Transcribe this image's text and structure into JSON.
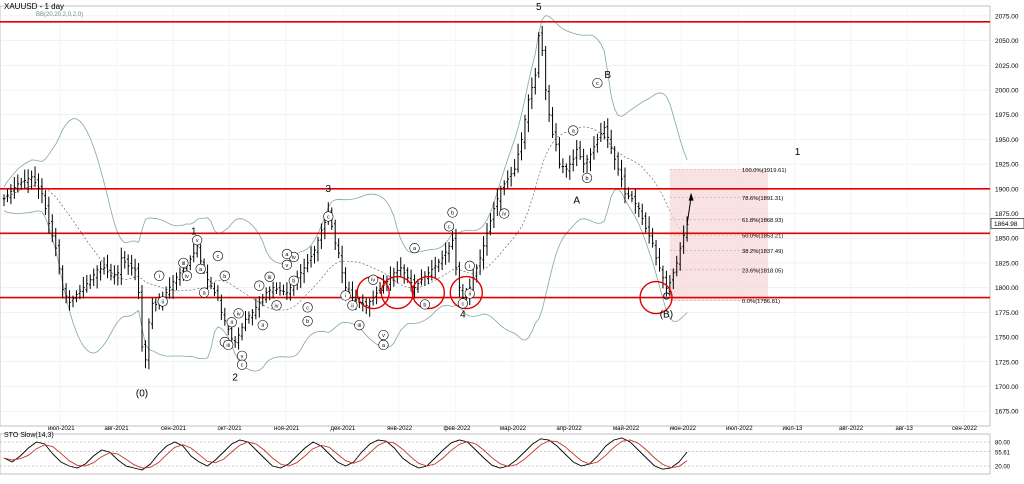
{
  "header": {
    "symbol_title": "XAUUSD - 1 day",
    "indicator_params": "BB(20,20,2,0,2,0)"
  },
  "sto_title": "STO Slow(14,3)",
  "chart_data": [
    {
      "type": "candlestick",
      "title": "XAUUSD - 1 day",
      "ylim": [
        1660,
        2085
      ],
      "y_ticks": [
        "2075.00",
        "2050.00",
        "2025.00",
        "2000.00",
        "1975.00",
        "1950.00",
        "1925.00",
        "1900.00",
        "1875.00",
        "1850.00",
        "1825.00",
        "1800.00",
        "1775.00",
        "1750.00",
        "1725.00",
        "1700.00",
        "1675.00"
      ],
      "x_ticks": [
        "июл-2021",
        "авг-2021",
        "сен-2021",
        "окт-2021",
        "ноя-2021",
        "дек-2021",
        "янв-2022",
        "фев-2022",
        "мар-2022",
        "апр-2022",
        "май-2022",
        "июн-2022",
        "июл-2022",
        "июл-13",
        "авг-2022",
        "авг-13",
        "сен-2022"
      ],
      "current_price": "1864.98",
      "horizontal_levels": [
        2069,
        1900,
        1855,
        1790
      ],
      "fib_levels": [
        {
          "label": "100.0%(1919.61)",
          "value": 1919.61
        },
        {
          "label": "78.6%(1891.31)",
          "value": 1891.31
        },
        {
          "label": "61.8%(1868.93)",
          "value": 1868.93
        },
        {
          "label": "50.0%(1853.21)",
          "value": 1853.21
        },
        {
          "label": "38.2%(1837.49)",
          "value": 1837.49
        },
        {
          "label": "23.6%(1818.05)",
          "value": 1818.05
        },
        {
          "label": "0.0%(1786.81)",
          "value": 1786.81
        }
      ],
      "price_path": [
        [
          0,
          1890
        ],
        [
          4,
          1905
        ],
        [
          8,
          1912
        ],
        [
          11,
          1895
        ],
        [
          13,
          1865
        ],
        [
          15,
          1840
        ],
        [
          17,
          1798
        ],
        [
          19,
          1785
        ],
        [
          21,
          1793
        ],
        [
          23,
          1800
        ],
        [
          25,
          1808
        ],
        [
          27,
          1818
        ],
        [
          29,
          1820
        ],
        [
          31,
          1812
        ],
        [
          33,
          1815
        ],
        [
          34,
          1830
        ],
        [
          36,
          1822
        ],
        [
          38,
          1818
        ],
        [
          39,
          1795
        ],
        [
          40,
          1740
        ],
        [
          41,
          1727
        ],
        [
          42,
          1765
        ],
        [
          43,
          1784
        ],
        [
          45,
          1782
        ],
        [
          47,
          1795
        ],
        [
          49,
          1806
        ],
        [
          51,
          1815
        ],
        [
          53,
          1823
        ],
        [
          55,
          1835
        ],
        [
          56,
          1842
        ],
        [
          57,
          1827
        ],
        [
          59,
          1808
        ],
        [
          61,
          1795
        ],
        [
          62,
          1790
        ],
        [
          63,
          1775
        ],
        [
          65,
          1758
        ],
        [
          66,
          1748
        ],
        [
          67,
          1745
        ],
        [
          68,
          1752
        ],
        [
          70,
          1768
        ],
        [
          72,
          1775
        ],
        [
          74,
          1785
        ],
        [
          76,
          1795
        ],
        [
          78,
          1800
        ],
        [
          80,
          1797
        ],
        [
          82,
          1795
        ],
        [
          84,
          1805
        ],
        [
          86,
          1815
        ],
        [
          88,
          1825
        ],
        [
          90,
          1838
        ],
        [
          92,
          1858
        ],
        [
          93,
          1866
        ],
        [
          94,
          1876
        ],
        [
          95,
          1862
        ],
        [
          96,
          1845
        ],
        [
          97,
          1835
        ],
        [
          98,
          1815
        ],
        [
          99,
          1800
        ],
        [
          101,
          1790
        ],
        [
          103,
          1785
        ],
        [
          105,
          1782
        ],
        [
          107,
          1790
        ],
        [
          109,
          1799
        ],
        [
          111,
          1806
        ],
        [
          113,
          1815
        ],
        [
          115,
          1820
        ],
        [
          117,
          1810
        ],
        [
          119,
          1800
        ],
        [
          121,
          1808
        ],
        [
          123,
          1815
        ],
        [
          125,
          1822
        ],
        [
          127,
          1830
        ],
        [
          129,
          1842
        ],
        [
          130,
          1848
        ],
        [
          131,
          1820
        ],
        [
          132,
          1800
        ],
        [
          133,
          1790
        ],
        [
          134,
          1790
        ],
        [
          135,
          1800
        ],
        [
          136,
          1810
        ],
        [
          138,
          1830
        ],
        [
          140,
          1855
        ],
        [
          142,
          1880
        ],
        [
          144,
          1900
        ],
        [
          146,
          1910
        ],
        [
          148,
          1920
        ],
        [
          150,
          1950
        ],
        [
          152,
          1990
        ],
        [
          154,
          2015
        ],
        [
          155,
          2055
        ],
        [
          156,
          2040
        ],
        [
          157,
          2000
        ],
        [
          158,
          1975
        ],
        [
          159,
          1955
        ],
        [
          160,
          1945
        ],
        [
          161,
          1925
        ],
        [
          163,
          1920
        ],
        [
          165,
          1930
        ],
        [
          166,
          1940
        ],
        [
          168,
          1925
        ],
        [
          170,
          1935
        ],
        [
          172,
          1950
        ],
        [
          174,
          1962
        ],
        [
          175,
          1952
        ],
        [
          177,
          1930
        ],
        [
          179,
          1910
        ],
        [
          180,
          1895
        ],
        [
          182,
          1890
        ],
        [
          184,
          1880
        ],
        [
          186,
          1860
        ],
        [
          188,
          1845
        ],
        [
          189,
          1830
        ],
        [
          191,
          1810
        ],
        [
          192,
          1799
        ],
        [
          193,
          1805
        ],
        [
          194,
          1815
        ],
        [
          195,
          1825
        ],
        [
          196,
          1840
        ],
        [
          197,
          1853
        ],
        [
          198,
          1864
        ]
      ],
      "wave_labels": [
        {
          "text": "(0)",
          "x": 40,
          "y": 1690,
          "style": "plain"
        },
        {
          "text": "1",
          "x": 55,
          "y": 1854,
          "style": "plain"
        },
        {
          "text": "2",
          "x": 67,
          "y": 1706,
          "style": "plain"
        },
        {
          "text": "3",
          "x": 94,
          "y": 1897,
          "style": "plain"
        },
        {
          "text": "4",
          "x": 133,
          "y": 1770,
          "style": "plain"
        },
        {
          "text": "5",
          "x": 155,
          "y": 2081,
          "style": "plain"
        },
        {
          "text": "A",
          "x": 166,
          "y": 1885,
          "style": "plain"
        },
        {
          "text": "B",
          "x": 175,
          "y": 2012,
          "style": "plain"
        },
        {
          "text": "C",
          "x": 192,
          "y": 1788,
          "style": "plain"
        },
        {
          "text": "(B)",
          "x": 192,
          "y": 1770,
          "style": "plain"
        },
        {
          "text": "1",
          "x": 230,
          "y": 1934,
          "style": "plain"
        },
        {
          "text": "i",
          "x": 45,
          "y": 1810,
          "style": "circle"
        },
        {
          "text": "ii",
          "x": 46,
          "y": 1784,
          "style": "circle"
        },
        {
          "text": "iii",
          "x": 52,
          "y": 1823,
          "style": "circle"
        },
        {
          "text": "iv",
          "x": 53,
          "y": 1810,
          "style": "circle"
        },
        {
          "text": "v",
          "x": 56,
          "y": 1846,
          "style": "circle"
        },
        {
          "text": "a",
          "x": 57,
          "y": 1817,
          "style": "circle"
        },
        {
          "text": "a",
          "x": 58,
          "y": 1793,
          "style": "circle"
        },
        {
          "text": "c",
          "x": 62,
          "y": 1830,
          "style": "circle"
        },
        {
          "text": "b",
          "x": 64,
          "y": 1810,
          "style": "circle"
        },
        {
          "text": "i",
          "x": 64,
          "y": 1743,
          "style": "circle"
        },
        {
          "text": "ii",
          "x": 66,
          "y": 1763,
          "style": "circle"
        },
        {
          "text": "iii",
          "x": 65,
          "y": 1740,
          "style": "circle"
        },
        {
          "text": "iv",
          "x": 68,
          "y": 1772,
          "style": "circle"
        },
        {
          "text": "v",
          "x": 69,
          "y": 1729,
          "style": "circle"
        },
        {
          "text": "c",
          "x": 69,
          "y": 1720,
          "style": "circle"
        },
        {
          "text": "i",
          "x": 74,
          "y": 1800,
          "style": "circle"
        },
        {
          "text": "ii",
          "x": 75,
          "y": 1760,
          "style": "circle"
        },
        {
          "text": "iii",
          "x": 77,
          "y": 1809,
          "style": "circle"
        },
        {
          "text": "iv",
          "x": 79,
          "y": 1780,
          "style": "circle"
        },
        {
          "text": "v",
          "x": 82,
          "y": 1821,
          "style": "circle"
        },
        {
          "text": "iv",
          "x": 84,
          "y": 1829,
          "style": "circle"
        },
        {
          "text": "a",
          "x": 82,
          "y": 1832,
          "style": "circle"
        },
        {
          "text": "b",
          "x": 84,
          "y": 1805,
          "style": "circle"
        },
        {
          "text": "c",
          "x": 88,
          "y": 1778,
          "style": "circle"
        },
        {
          "text": "b",
          "x": 88,
          "y": 1764,
          "style": "circle"
        },
        {
          "text": "c",
          "x": 94,
          "y": 1870,
          "style": "circle"
        },
        {
          "text": "i",
          "x": 99,
          "y": 1790,
          "style": "circle"
        },
        {
          "text": "ii",
          "x": 101,
          "y": 1780,
          "style": "circle"
        },
        {
          "text": "iii",
          "x": 103,
          "y": 1760,
          "style": "circle"
        },
        {
          "text": "iv",
          "x": 107,
          "y": 1806,
          "style": "circle"
        },
        {
          "text": "v",
          "x": 110,
          "y": 1750,
          "style": "circle"
        },
        {
          "text": "a",
          "x": 110,
          "y": 1740,
          "style": "circle"
        },
        {
          "text": "a",
          "x": 119,
          "y": 1838,
          "style": "circle"
        },
        {
          "text": "b",
          "x": 122,
          "y": 1781,
          "style": "circle"
        },
        {
          "text": "b",
          "x": 130,
          "y": 1874,
          "style": "circle"
        },
        {
          "text": "c",
          "x": 129,
          "y": 1860,
          "style": "circle"
        },
        {
          "text": "c",
          "x": 133,
          "y": 1782,
          "style": "circle"
        },
        {
          "text": "i",
          "x": 135,
          "y": 1820,
          "style": "circle"
        },
        {
          "text": "ii",
          "x": 135,
          "y": 1792,
          "style": "circle"
        },
        {
          "text": "iv",
          "x": 145,
          "y": 1873,
          "style": "circle"
        },
        {
          "text": "c",
          "x": 172,
          "y": 2005,
          "style": "circle"
        },
        {
          "text": "a",
          "x": 165,
          "y": 1957,
          "style": "circle"
        },
        {
          "text": "b",
          "x": 169,
          "y": 1909,
          "style": "circle"
        }
      ],
      "red_circles": [
        {
          "x": 107,
          "y": 1795
        },
        {
          "x": 114,
          "y": 1795
        },
        {
          "x": 123,
          "y": 1795
        },
        {
          "x": 134,
          "y": 1795
        },
        {
          "x": 189,
          "y": 1790
        }
      ]
    },
    {
      "type": "line",
      "title": "STO Slow(14,3)",
      "ylim": [
        0,
        100
      ],
      "y_ticks": [
        "80.00",
        "55.61",
        "20.00"
      ],
      "current_value": "55.61",
      "main": [
        40,
        30,
        45,
        65,
        80,
        75,
        50,
        30,
        20,
        15,
        25,
        45,
        60,
        55,
        35,
        20,
        15,
        10,
        25,
        50,
        70,
        80,
        70,
        45,
        30,
        20,
        35,
        55,
        75,
        85,
        80,
        60,
        40,
        20,
        15,
        25,
        45,
        65,
        80,
        70,
        50,
        30,
        20,
        30,
        55,
        75,
        85,
        82,
        65,
        40,
        25,
        15,
        20,
        40,
        60,
        78,
        85,
        80,
        60,
        40,
        22,
        15,
        20,
        35,
        55,
        75,
        88,
        85,
        70,
        50,
        30,
        20,
        25,
        45,
        70,
        85,
        90,
        80,
        60,
        40,
        20,
        12,
        15,
        30,
        55
      ]
    }
  ]
}
